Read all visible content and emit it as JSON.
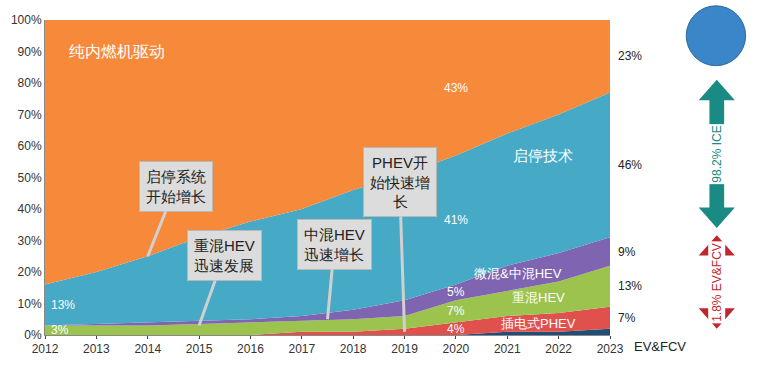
{
  "chart_data": {
    "type": "area",
    "stacked": true,
    "grid": false,
    "x": [
      2012,
      2013,
      2014,
      2015,
      2016,
      2017,
      2018,
      2019,
      2020,
      2021,
      2022,
      2023
    ],
    "xlim": [
      2012,
      2023
    ],
    "xticks": [
      2012,
      2013,
      2014,
      2015,
      2016,
      2017,
      2018,
      2019,
      2020,
      2021,
      2022,
      2023
    ],
    "ylim": [
      0,
      100
    ],
    "yticks": [
      {
        "value": 0,
        "label": "0%"
      },
      {
        "value": 10,
        "label": "10%"
      },
      {
        "value": 20,
        "label": "20%"
      },
      {
        "value": 30,
        "label": "30%"
      },
      {
        "value": 40,
        "label": "40%"
      },
      {
        "value": 50,
        "label": "50%"
      },
      {
        "value": 60,
        "label": "60%"
      },
      {
        "value": 70,
        "label": "70%"
      },
      {
        "value": 80,
        "label": "80%"
      },
      {
        "value": 90,
        "label": "90%"
      },
      {
        "value": 100,
        "label": "100%"
      }
    ],
    "data_labels": true,
    "series": [
      {
        "name": "EV&FCV",
        "color": "#1f4e79",
        "values": [
          0,
          0,
          0,
          0,
          0,
          0,
          0,
          0,
          0,
          1,
          1,
          2
        ]
      },
      {
        "name": "插电式PHEV",
        "color": "#e0504d",
        "values": [
          0,
          0,
          0,
          0,
          0,
          1,
          1,
          2,
          4,
          5,
          6,
          7
        ],
        "value_labels": [
          null,
          null,
          null,
          null,
          null,
          null,
          null,
          null,
          "4%",
          null,
          null,
          "7%"
        ]
      },
      {
        "name": "重混HEV",
        "color": "#9bc34d",
        "values": [
          3,
          3,
          3,
          3.5,
          4,
          3.5,
          4,
          4,
          7,
          8,
          10,
          13
        ],
        "value_labels": [
          "3%",
          null,
          null,
          null,
          null,
          null,
          null,
          null,
          "7%",
          null,
          null,
          "13%"
        ]
      },
      {
        "name": "微混&中混HEV",
        "color": "#7f64b2",
        "values": [
          0,
          0.5,
          1,
          1,
          1,
          1.5,
          3,
          5,
          5,
          8,
          9,
          9
        ],
        "value_labels": [
          null,
          null,
          null,
          null,
          null,
          null,
          null,
          null,
          "5%",
          null,
          null,
          "9%"
        ]
      },
      {
        "name": "启停技术",
        "color": "#46a9c6",
        "values": [
          13,
          16.5,
          21,
          26.5,
          31,
          34,
          38,
          40,
          41,
          42,
          44,
          46
        ],
        "value_labels": [
          "13%",
          null,
          null,
          null,
          null,
          null,
          null,
          null,
          "41%",
          null,
          null,
          "46%"
        ]
      },
      {
        "name": "纯内燃机驱动",
        "color": "#f7893b",
        "values": [
          84,
          80,
          75,
          69,
          64,
          60,
          54,
          49,
          43,
          36,
          30,
          23
        ],
        "value_labels": [
          null,
          null,
          null,
          null,
          null,
          null,
          null,
          null,
          "43%",
          null,
          null,
          "23%"
        ]
      }
    ],
    "annotations": [
      {
        "text": "启停系统\n开始增长",
        "x": 2014,
        "y": 25
      },
      {
        "text": "重混HEV\n迅速发展",
        "x": 2015,
        "y": 3
      },
      {
        "text": "中混HEV\n迅速增长",
        "x": 2017.5,
        "y": 5
      },
      {
        "text": "PHEV开\n始快速增\n长",
        "x": 2019,
        "y": 1
      }
    ],
    "arrow_labels": [
      "98.2% ICE",
      "1.8% EV&FCV"
    ]
  }
}
